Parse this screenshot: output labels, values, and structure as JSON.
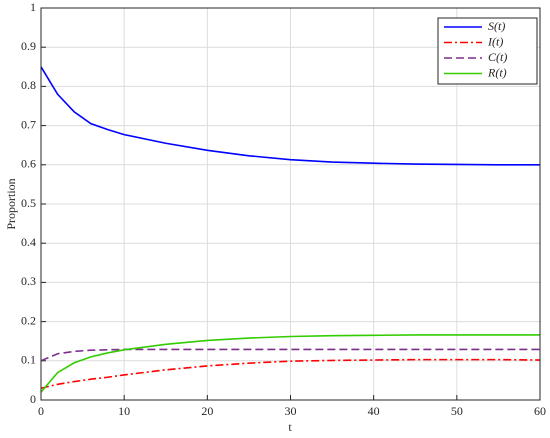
{
  "chart_data": {
    "type": "line",
    "xlabel": "t",
    "ylabel": "Proportion",
    "x": [
      0,
      2,
      4,
      6,
      8,
      10,
      15,
      20,
      25,
      30,
      35,
      40,
      45,
      50,
      55,
      60
    ],
    "series": [
      {
        "name": "S(t)",
        "color": "#0000ff",
        "linestyle": "solid",
        "values": [
          0.85,
          0.78,
          0.735,
          0.705,
          0.69,
          0.677,
          0.655,
          0.637,
          0.623,
          0.613,
          0.607,
          0.604,
          0.602,
          0.601,
          0.6,
          0.6
        ]
      },
      {
        "name": "I(t)",
        "color": "#ff0000",
        "linestyle": "dashdot",
        "values": [
          0.03,
          0.04,
          0.047,
          0.053,
          0.058,
          0.064,
          0.077,
          0.087,
          0.094,
          0.099,
          0.101,
          0.102,
          0.103,
          0.103,
          0.103,
          0.102
        ]
      },
      {
        "name": "C(t)",
        "color": "#7e2f8e",
        "linestyle": "dashed",
        "values": [
          0.1,
          0.118,
          0.124,
          0.127,
          0.128,
          0.129,
          0.129,
          0.129,
          0.129,
          0.129,
          0.129,
          0.129,
          0.129,
          0.129,
          0.129,
          0.129
        ]
      },
      {
        "name": "R(t)",
        "color": "#33cc00",
        "linestyle": "solid",
        "values": [
          0.02,
          0.07,
          0.095,
          0.11,
          0.12,
          0.128,
          0.142,
          0.152,
          0.158,
          0.162,
          0.164,
          0.165,
          0.166,
          0.166,
          0.166,
          0.166
        ]
      }
    ],
    "xlim": [
      0,
      60
    ],
    "xticks": [
      0,
      10,
      20,
      30,
      40,
      50,
      60
    ],
    "ylim": [
      0,
      1
    ],
    "yticks": [
      0,
      0.1,
      0.2,
      0.3,
      0.4,
      0.5,
      0.6,
      0.7,
      0.8,
      0.9,
      1
    ],
    "grid": true,
    "legend": "top-right"
  }
}
